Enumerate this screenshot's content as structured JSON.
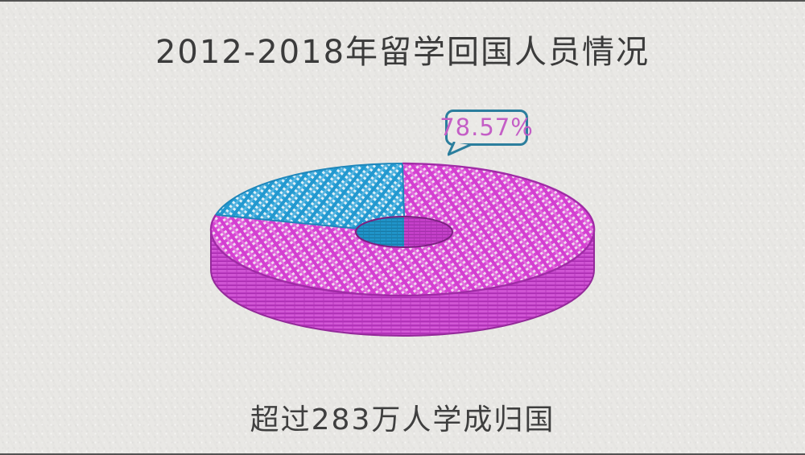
{
  "page": {
    "title": "2012-2018年留学回国人员情况",
    "caption": "超过283万人学成归国"
  },
  "bubble": {
    "label": "78.57%"
  },
  "chart_data": {
    "type": "pie",
    "subtype": "hand-drawn 3d donut",
    "title": "2012-2018年留学回国人员情况",
    "caption": "超过283万人学成归国",
    "donut_hole": true,
    "legend": false,
    "start_angle_deg": 90,
    "direction": "counterclockwise",
    "slices": [
      {
        "name": "highlighted-share",
        "value": 78.57,
        "color": "#d644d3",
        "annotation": "78.57%"
      },
      {
        "name": "remainder-share",
        "value": 21.43,
        "color": "#2ba3d9",
        "annotation": ""
      }
    ]
  },
  "colors": {
    "paper": "#e9e8e5",
    "ink": "#3b3b3b",
    "pink": "#d644d3",
    "pink_dark": "#9c2ba1",
    "blue": "#2ba3d9",
    "blue_dark": "#1f86ba",
    "bubble_border": "#2b7e9d",
    "bubble_text": "#c45ec6"
  }
}
